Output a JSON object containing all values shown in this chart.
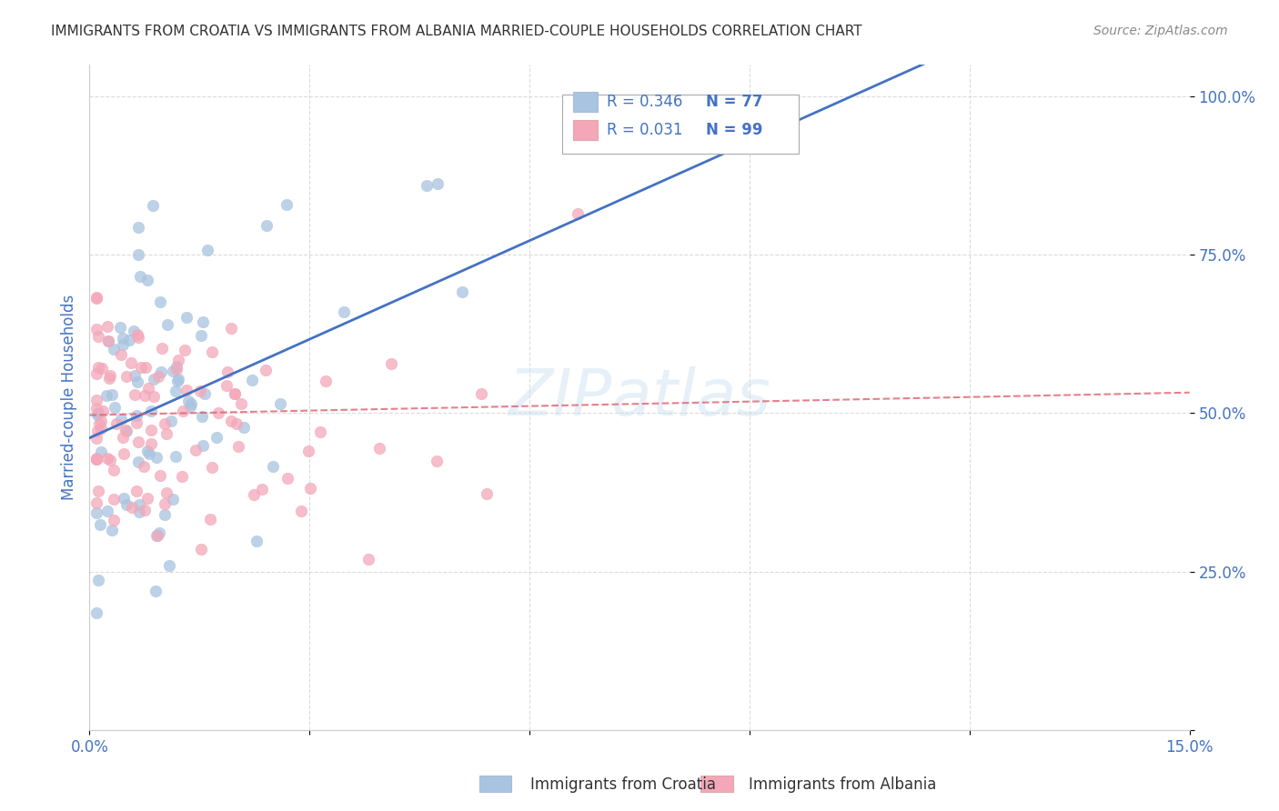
{
  "title": "IMMIGRANTS FROM CROATIA VS IMMIGRANTS FROM ALBANIA MARRIED-COUPLE HOUSEHOLDS CORRELATION CHART",
  "source": "Source: ZipAtlas.com",
  "ylabel_label": "Married-couple Households",
  "croatia_label": "Immigrants from Croatia",
  "albania_label": "Immigrants from Albania",
  "xlim": [
    0.0,
    0.15
  ],
  "ylim": [
    0.0,
    1.05
  ],
  "xtick_pos": [
    0.0,
    0.03,
    0.06,
    0.09,
    0.12,
    0.15
  ],
  "xtick_labels": [
    "0.0%",
    "",
    "",
    "",
    "",
    "15.0%"
  ],
  "ytick_positions": [
    0.0,
    0.25,
    0.5,
    0.75,
    1.0
  ],
  "ytick_labels": [
    "",
    "25.0%",
    "50.0%",
    "75.0%",
    "100.0%"
  ],
  "croatia_color": "#a8c4e0",
  "albania_color": "#f4a7b9",
  "croatia_line_color": "#4472c4",
  "albania_line_color": "#e06070",
  "croatia_R": 0.346,
  "croatia_N": 77,
  "albania_R": 0.031,
  "albania_N": 99,
  "watermark": "ZIPatlas",
  "background_color": "#ffffff",
  "grid_color": "#cccccc",
  "title_color": "#333333",
  "axis_label_color": "#4472c4",
  "tick_color": "#4472c4",
  "legend_r_color": "#4472c4"
}
